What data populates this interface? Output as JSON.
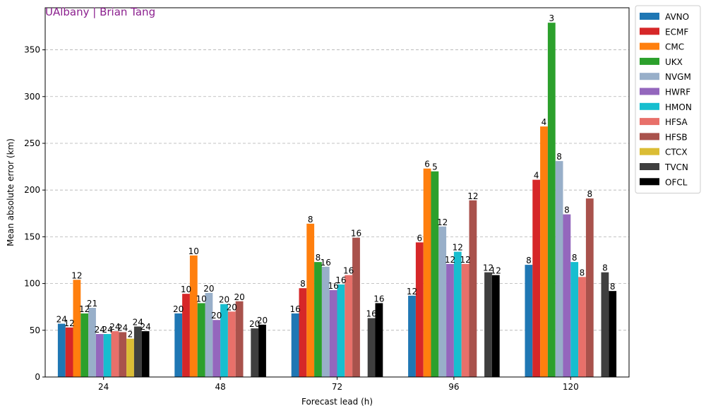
{
  "chart_data": {
    "type": "bar",
    "watermark": "UAlbany | Brian Tang",
    "xlabel": "Forecast lead (h)",
    "ylabel": "Mean absolute error (km)",
    "categories": [
      "24",
      "48",
      "72",
      "96",
      "120"
    ],
    "ylim": [
      0,
      395
    ],
    "yticks": [
      0,
      50,
      100,
      150,
      200,
      250,
      300,
      350
    ],
    "grid": "horizontal dashed",
    "legend_position": "right, outside plot",
    "series": [
      {
        "name": "AVNO",
        "color": "#1f77b4",
        "values": [
          57,
          68,
          68,
          87,
          120
        ],
        "labels": [
          "24",
          "20",
          "16",
          "12",
          "8"
        ]
      },
      {
        "name": "ECMF",
        "color": "#d62728",
        "values": [
          53,
          89,
          95,
          144,
          211
        ],
        "labels": [
          "12",
          "10",
          "8",
          "6",
          "4"
        ]
      },
      {
        "name": "CMC",
        "color": "#ff7f0e",
        "values": [
          104,
          130,
          164,
          223,
          268
        ],
        "labels": [
          "12",
          "10",
          "8",
          "6",
          "4"
        ]
      },
      {
        "name": "UKX",
        "color": "#2ca02c",
        "values": [
          68,
          79,
          123,
          220,
          379
        ],
        "labels": [
          "12",
          "10",
          "8",
          "5",
          "3"
        ]
      },
      {
        "name": "NVGM",
        "color": "#98afc9",
        "values": [
          74,
          90,
          118,
          161,
          231
        ],
        "labels": [
          "21",
          "20",
          "16",
          "12",
          "8"
        ]
      },
      {
        "name": "HWRF",
        "color": "#9467bd",
        "values": [
          46,
          61,
          93,
          121,
          174
        ],
        "labels": [
          "24",
          "20",
          "16",
          "12",
          "8"
        ]
      },
      {
        "name": "HMON",
        "color": "#17becf",
        "values": [
          46,
          78,
          99,
          134,
          123
        ],
        "labels": [
          "24",
          "20",
          "16",
          "12",
          "8"
        ]
      },
      {
        "name": "HFSA",
        "color": "#e8706a",
        "values": [
          49,
          70,
          109,
          121,
          107
        ],
        "labels": [
          "24",
          "20",
          "16",
          "12",
          "8"
        ]
      },
      {
        "name": "HFSB",
        "color": "#a9524c",
        "values": [
          48,
          81,
          149,
          189,
          191
        ],
        "labels": [
          "24",
          "20",
          "16",
          "12",
          "8"
        ]
      },
      {
        "name": "CTCX",
        "color": "#dbbd35",
        "values": [
          41,
          null,
          null,
          null,
          null
        ],
        "labels": [
          "2",
          null,
          null,
          null,
          null
        ]
      },
      {
        "name": "TVCN",
        "color": "#3f3f3f",
        "values": [
          54,
          52,
          63,
          112,
          112
        ],
        "labels": [
          "24",
          "20",
          "16",
          "12",
          "8"
        ]
      },
      {
        "name": "OFCL",
        "color": "#000000",
        "values": [
          49,
          56,
          79,
          109,
          92
        ],
        "labels": [
          "24",
          "20",
          "16",
          "12",
          "8"
        ]
      }
    ]
  }
}
